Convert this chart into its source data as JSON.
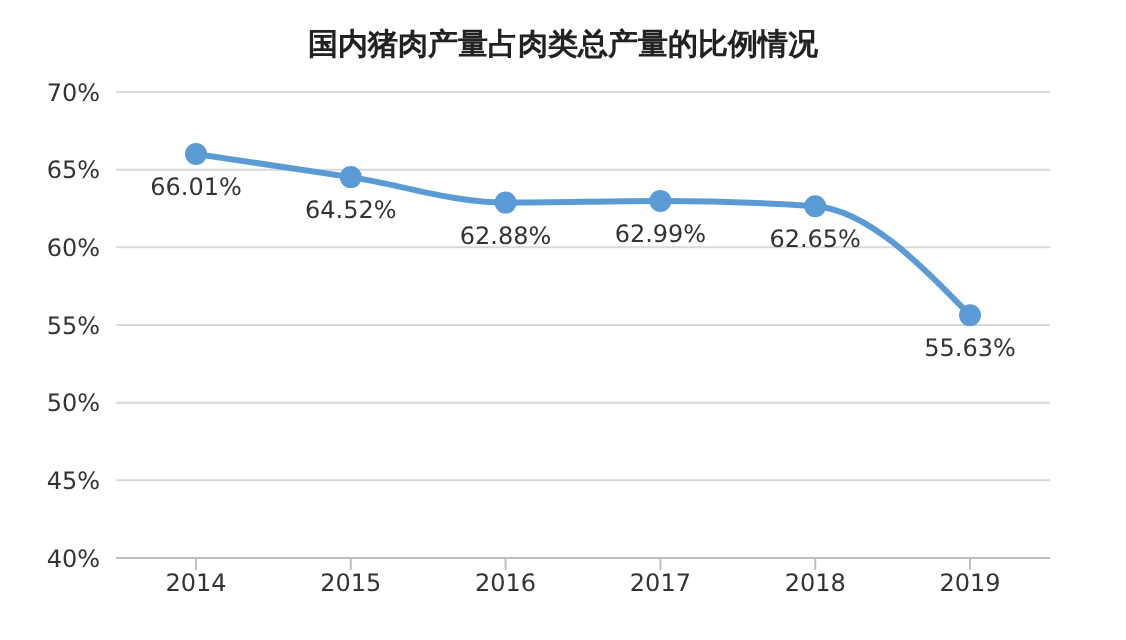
{
  "chart_data": {
    "type": "line",
    "title": "国内猪肉产量占肉类总产量的比例情况",
    "categories": [
      "2014",
      "2015",
      "2016",
      "2017",
      "2018",
      "2019"
    ],
    "series": [
      {
        "color": "#5b9bd5",
        "values": [
          66.01,
          64.52,
          62.88,
          62.99,
          62.65,
          55.63
        ],
        "value_labels": [
          "66.01%",
          "64.52%",
          "62.88%",
          "62.99%",
          "62.65%",
          "55.63%"
        ]
      }
    ],
    "ylim": [
      40,
      70
    ],
    "yticks": [
      {
        "value": 40,
        "label": "40%"
      },
      {
        "value": 45,
        "label": "45%"
      },
      {
        "value": 50,
        "label": "50%"
      },
      {
        "value": 55,
        "label": "55%"
      },
      {
        "value": 60,
        "label": "60%"
      },
      {
        "value": 65,
        "label": "65%"
      },
      {
        "value": 70,
        "label": "70%"
      }
    ],
    "grid": "y",
    "marker": "circle",
    "line_style": "solid"
  }
}
